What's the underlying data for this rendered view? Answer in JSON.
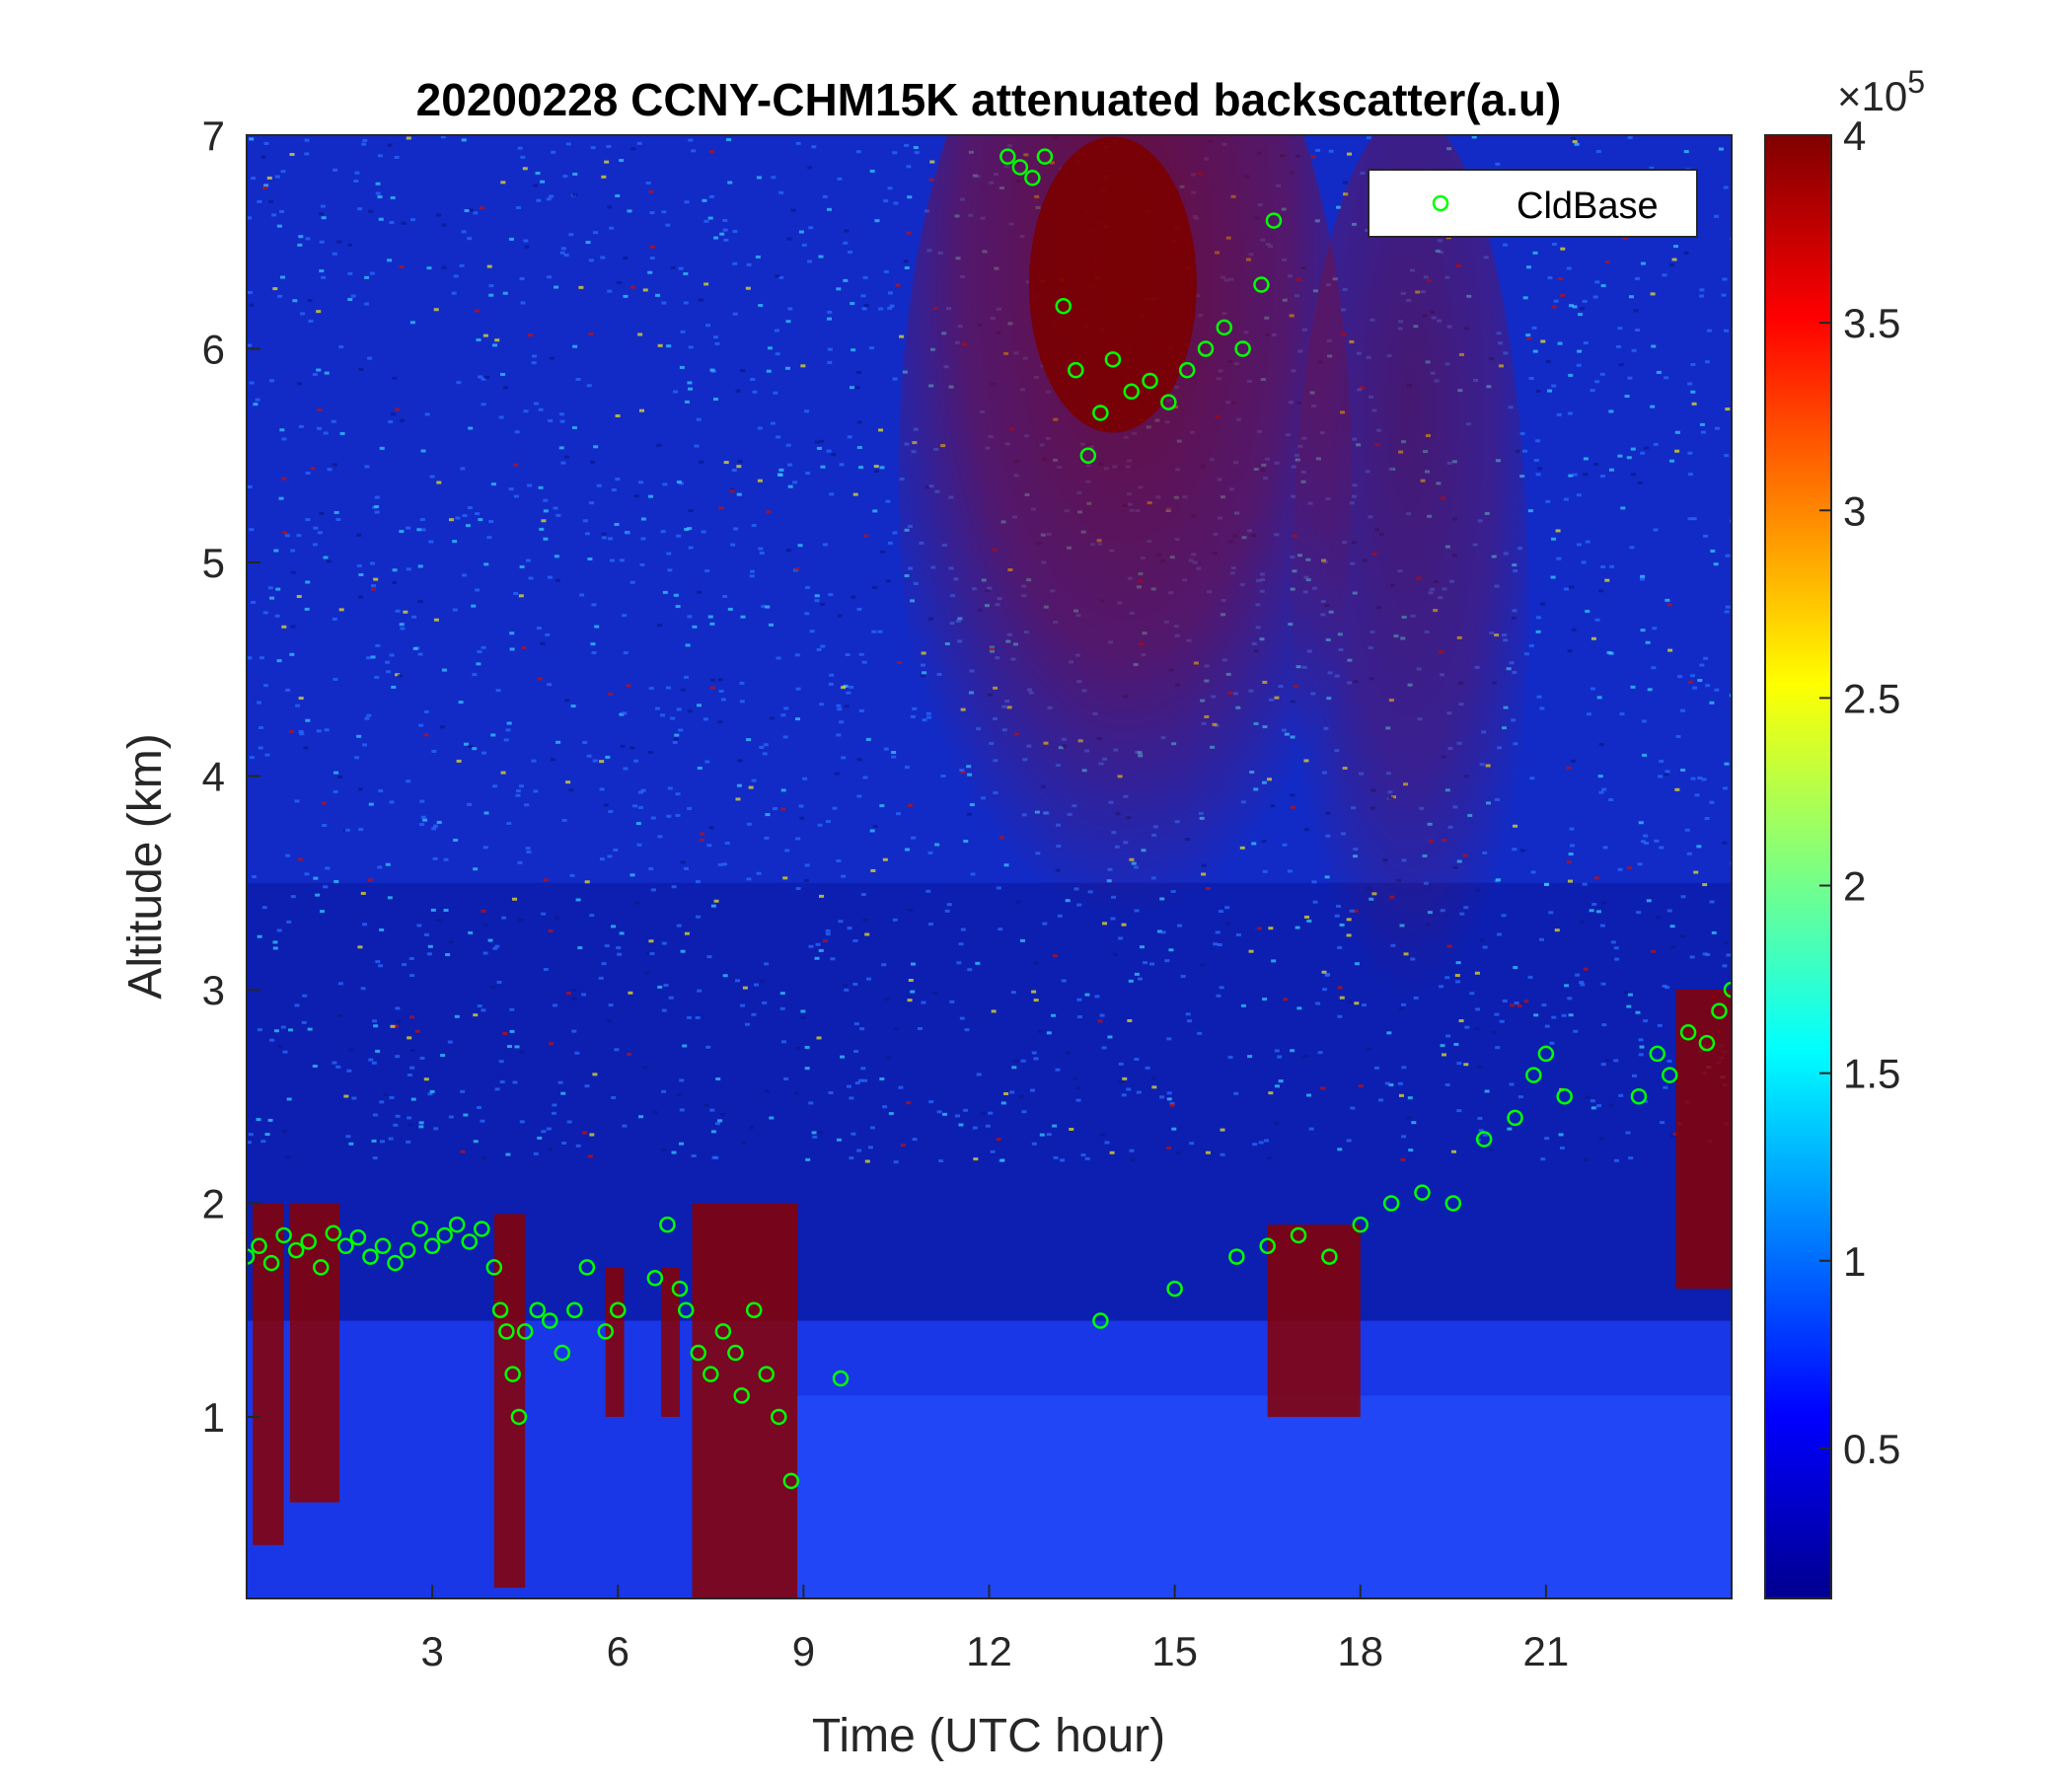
{
  "chart_data": {
    "type": "heatmap",
    "title": "20200228 CCNY-CHM15K attenuated backscatter(a.u)",
    "xlabel": "Time (UTC hour)",
    "ylabel": "Altitude (km)",
    "xlim": [
      0,
      24
    ],
    "ylim": [
      0.15,
      7
    ],
    "xticks": [
      3,
      6,
      9,
      12,
      15,
      18,
      21
    ],
    "yticks": [
      1,
      2,
      3,
      4,
      5,
      6,
      7
    ],
    "colorbar": {
      "colormap": "jet",
      "clim": [
        0.1,
        4
      ],
      "ticks": [
        0.5,
        1,
        1.5,
        2,
        2.5,
        3,
        3.5,
        4
      ],
      "exponent_label": "×10",
      "exponent": "5"
    },
    "legend": {
      "location": "top-right",
      "entries": [
        "CldBase"
      ]
    },
    "marker_color": "#00ff00",
    "series": [
      {
        "name": "CldBase",
        "marker": "circle",
        "x": [
          0.0,
          0.2,
          0.4,
          0.6,
          0.8,
          1.0,
          1.2,
          1.4,
          1.6,
          1.8,
          2.0,
          2.2,
          2.4,
          2.6,
          2.8,
          3.0,
          3.2,
          3.4,
          3.6,
          3.8,
          4.0,
          4.1,
          4.2,
          4.3,
          4.4,
          4.5,
          4.7,
          4.9,
          5.1,
          5.3,
          5.5,
          5.8,
          6.0,
          6.6,
          6.8,
          7.0,
          7.1,
          7.3,
          7.5,
          7.7,
          7.9,
          8.0,
          8.2,
          8.4,
          8.6,
          8.8,
          9.6,
          12.3,
          12.5,
          12.7,
          12.9,
          13.2,
          13.4,
          13.6,
          13.8,
          14.0,
          14.3,
          14.6,
          14.9,
          15.2,
          15.5,
          15.8,
          16.1,
          16.4,
          16.6,
          13.8,
          15.0,
          16.0,
          16.5,
          17.0,
          17.5,
          18.0,
          18.5,
          19.0,
          19.5,
          20.0,
          20.5,
          20.8,
          21.0,
          21.3,
          22.5,
          22.8,
          23.0,
          23.3,
          23.6,
          23.8,
          24.0
        ],
        "y": [
          1.75,
          1.8,
          1.72,
          1.85,
          1.78,
          1.82,
          1.7,
          1.86,
          1.8,
          1.84,
          1.75,
          1.8,
          1.72,
          1.78,
          1.88,
          1.8,
          1.85,
          1.9,
          1.82,
          1.88,
          1.7,
          1.5,
          1.4,
          1.2,
          1.0,
          1.4,
          1.5,
          1.45,
          1.3,
          1.5,
          1.7,
          1.4,
          1.5,
          1.65,
          1.9,
          1.6,
          1.5,
          1.3,
          1.2,
          1.4,
          1.3,
          1.1,
          1.5,
          1.2,
          1.0,
          0.7,
          1.18,
          6.9,
          6.85,
          6.8,
          6.9,
          6.2,
          5.9,
          5.5,
          5.7,
          5.95,
          5.8,
          5.85,
          5.75,
          5.9,
          6.0,
          6.1,
          6.0,
          6.3,
          6.6,
          1.45,
          1.6,
          1.75,
          1.8,
          1.85,
          1.75,
          1.9,
          2.0,
          2.05,
          2.0,
          2.3,
          2.4,
          2.6,
          2.7,
          2.5,
          2.5,
          2.7,
          2.6,
          2.8,
          2.75,
          2.9,
          3.0
        ]
      }
    ]
  }
}
